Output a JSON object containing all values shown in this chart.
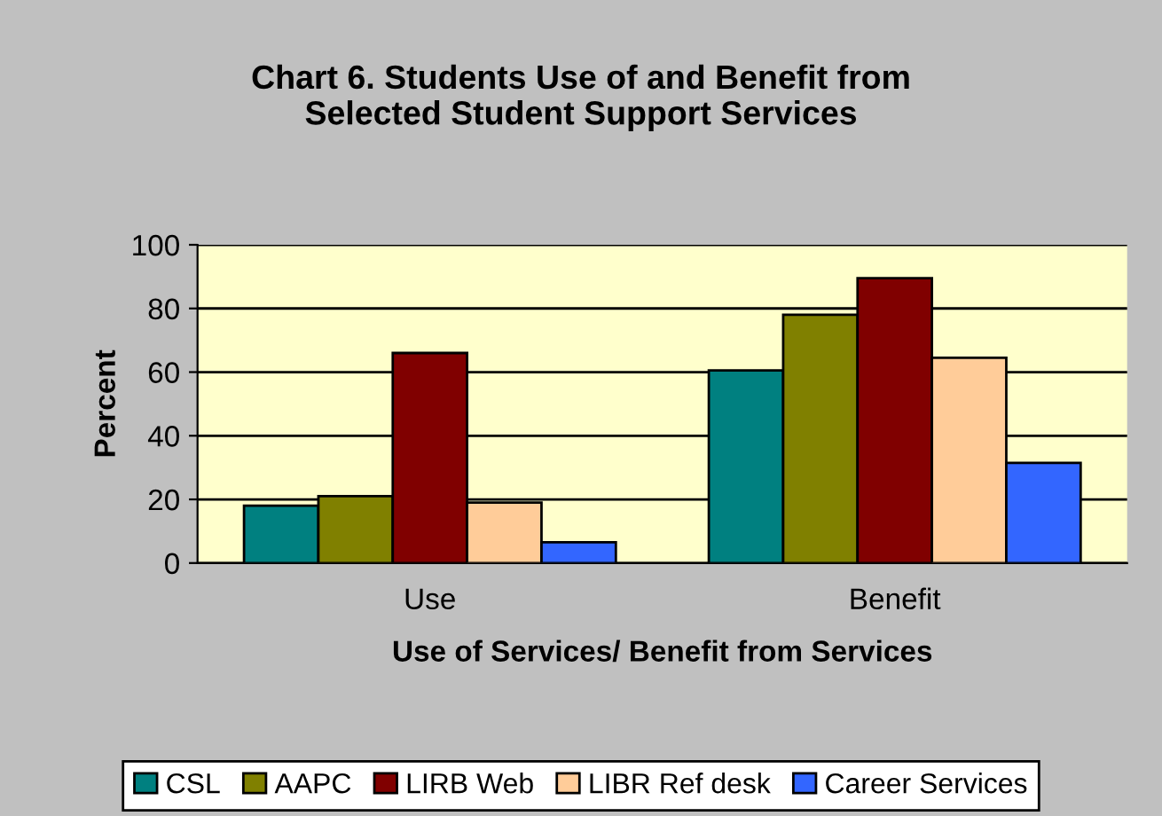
{
  "chart_data": {
    "type": "bar",
    "title": "Chart 6. Students Use of and Benefit from\nSelected Student Support Services",
    "xlabel": "Use of Services/ Benefit from Services",
    "ylabel": "Percent",
    "categories": [
      "Use",
      "Benefit"
    ],
    "series": [
      {
        "name": "CSL",
        "color": "#008080",
        "values": [
          18,
          60.5
        ]
      },
      {
        "name": "AAPC",
        "color": "#808000",
        "values": [
          21,
          78
        ]
      },
      {
        "name": "LIRB Web",
        "color": "#800000",
        "values": [
          66,
          89.5
        ]
      },
      {
        "name": "LIBR Ref desk",
        "color": "#ffcc99",
        "values": [
          19,
          64.5
        ]
      },
      {
        "name": "Career Services",
        "color": "#3366ff",
        "values": [
          6.5,
          31.5
        ]
      }
    ],
    "ylim": [
      0,
      100
    ],
    "yticks": [
      0,
      20,
      40,
      60,
      80,
      100
    ],
    "grid": "y",
    "legend": "bottom"
  }
}
